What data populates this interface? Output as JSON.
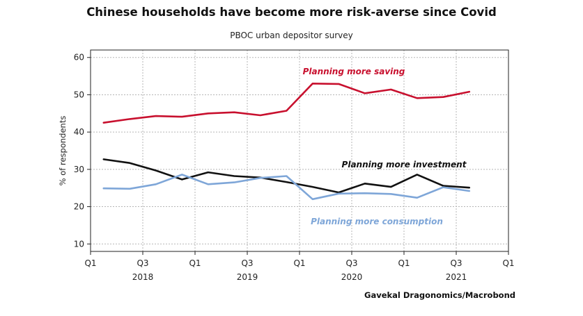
{
  "chart_data": {
    "type": "line",
    "title": "Chinese households have become more risk-averse since Covid",
    "subtitle": "PBOC urban depositor survey",
    "ylabel": "% of respondents",
    "source": "Gavekal Dragonomics/Macrobond",
    "ylim": [
      8,
      62
    ],
    "yticks": [
      10,
      20,
      30,
      40,
      50,
      60
    ],
    "grid": true,
    "x": [
      "2018Q1",
      "2018Q2",
      "2018Q3",
      "2018Q4",
      "2019Q1",
      "2019Q2",
      "2019Q3",
      "2019Q4",
      "2020Q1",
      "2020Q2",
      "2020Q3",
      "2020Q4",
      "2021Q1",
      "2021Q2",
      "2021Q3"
    ],
    "xticks": [
      {
        "label": "Q1",
        "year": "2018"
      },
      {
        "label": "Q3",
        "year": ""
      },
      {
        "label": "Q1",
        "year": "2019"
      },
      {
        "label": "Q3",
        "year": ""
      },
      {
        "label": "Q1",
        "year": "2020"
      },
      {
        "label": "Q3",
        "year": ""
      },
      {
        "label": "Q1",
        "year": "2021"
      },
      {
        "label": "Q3",
        "year": ""
      },
      {
        "label": "Q1",
        "year": ""
      }
    ],
    "years": [
      "2018",
      "2019",
      "2020",
      "2021"
    ],
    "series": [
      {
        "name": "Planning more saving",
        "color": "#c8102e",
        "values": [
          42.5,
          43.5,
          44.3,
          44.1,
          45.0,
          45.3,
          44.5,
          45.7,
          53.0,
          52.9,
          50.4,
          51.4,
          49.1,
          49.4,
          50.8
        ]
      },
      {
        "name": "Planning more investment",
        "color": "#111111",
        "values": [
          32.7,
          31.7,
          29.7,
          27.3,
          29.2,
          28.2,
          27.8,
          26.6,
          25.3,
          23.8,
          26.2,
          25.3,
          28.6,
          25.6,
          25.1
        ]
      },
      {
        "name": "Planning more consumption",
        "color": "#7ea6d8",
        "values": [
          24.9,
          24.8,
          26.0,
          28.6,
          26.0,
          26.5,
          27.7,
          28.2,
          22.0,
          23.5,
          23.6,
          23.4,
          22.4,
          25.2,
          24.2
        ]
      }
    ]
  }
}
